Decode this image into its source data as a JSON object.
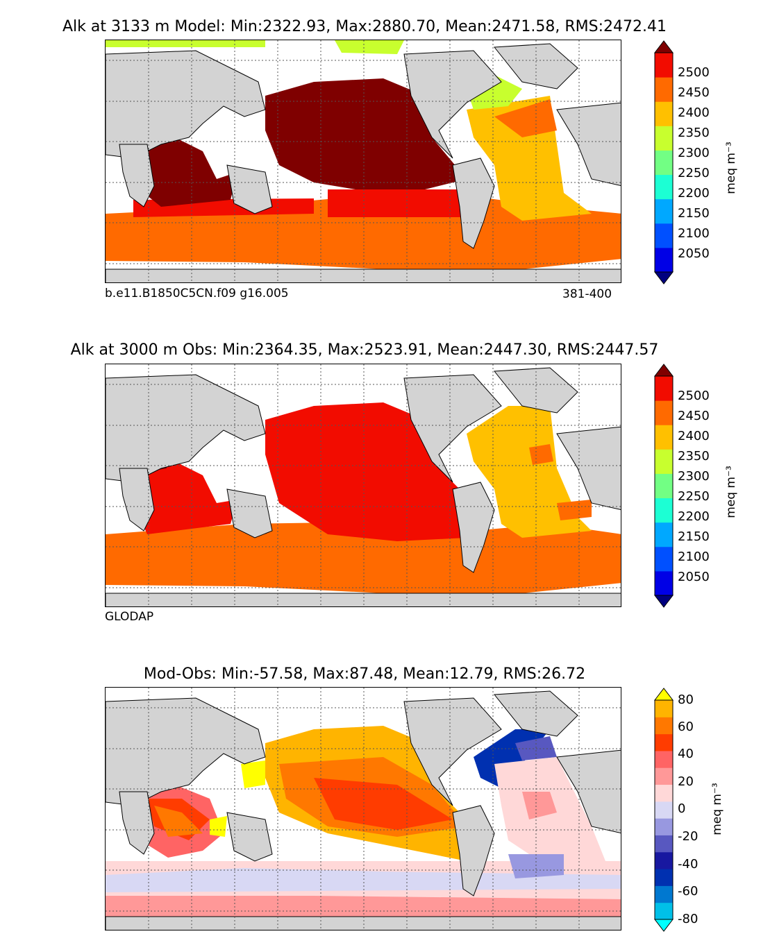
{
  "panels": [
    {
      "title": "Alk at 3133 m Model: Min:2322.93, Max:2880.70, Mean:2471.58, RMS:2472.41",
      "left_note": "b.e11.B1850C5CN.f09 g16.005",
      "right_note": "381-400",
      "unit_label": "meq m⁻³",
      "colorbar_ticks": [
        "2500",
        "2450",
        "2400",
        "2350",
        "2300",
        "2250",
        "2200",
        "2150",
        "2100",
        "2050"
      ],
      "colors": [
        "#00007f",
        "#0000e6",
        "#0050ff",
        "#00a8ff",
        "#1cffd4",
        "#72ff84",
        "#c8ff2e",
        "#ffc000",
        "#ff6a00",
        "#f20c00",
        "#7f0000"
      ]
    },
    {
      "title": "Alk at 3000 m Obs: Min:2364.35, Max:2523.91, Mean:2447.30, RMS:2447.57",
      "left_note": "GLODAP",
      "unit_label": "meq m⁻³",
      "colorbar_ticks": [
        "2500",
        "2450",
        "2400",
        "2350",
        "2300",
        "2250",
        "2200",
        "2150",
        "2100",
        "2050"
      ],
      "colors": [
        "#00007f",
        "#0000e6",
        "#0050ff",
        "#00a8ff",
        "#1cffd4",
        "#72ff84",
        "#c8ff2e",
        "#ffc000",
        "#ff6a00",
        "#f20c00",
        "#7f0000"
      ]
    },
    {
      "title": "Mod-Obs: Min:-57.58, Max:87.48, Mean:12.79, RMS:26.72",
      "unit_label": "meq m⁻³",
      "colorbar_ticks": [
        "80",
        "60",
        "40",
        "20",
        "0",
        "-20",
        "-40",
        "-60",
        "-80"
      ],
      "colors": [
        "#00ffff",
        "#00c0e8",
        "#0078d0",
        "#0030b0",
        "#1818a0",
        "#5858c0",
        "#9898e0",
        "#d8d8f4",
        "#ffd8d8",
        "#ff9898",
        "#ff6464",
        "#ff3c00",
        "#ff7800",
        "#ffb400",
        "#ffff00"
      ]
    }
  ]
}
